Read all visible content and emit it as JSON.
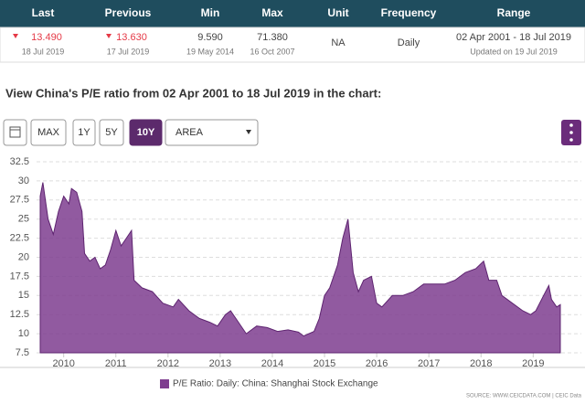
{
  "table": {
    "columns": [
      {
        "header": "Last",
        "value": "13.490",
        "date": "18 Jul 2019"
      },
      {
        "header": "Previous",
        "value": "13.630",
        "date": "17 Jul 2019"
      },
      {
        "header": "Min",
        "value": "9.590",
        "date": "19 May 2014"
      },
      {
        "header": "Max",
        "value": "71.380",
        "date": "16 Oct 2007"
      },
      {
        "header": "Unit",
        "value": "NA"
      },
      {
        "header": "Frequency",
        "value": "Daily"
      },
      {
        "header": "Range",
        "value": "02 Apr 2001 - 18 Jul 2019",
        "date": "Updated on 19 Jul 2019"
      }
    ]
  },
  "heading": "View China's P/E ratio from 02 Apr 2001 to 18 Jul 2019 in the chart:",
  "toolbar": {
    "buttons": [
      "MAX",
      "1Y",
      "5Y",
      "10Y"
    ],
    "active": 3,
    "dropdown": "AREA"
  },
  "chart_data": {
    "type": "area",
    "x": [
      2009.55,
      2009.6,
      2009.7,
      2009.8,
      2009.9,
      2010.0,
      2010.1,
      2010.15,
      2010.25,
      2010.35,
      2010.4,
      2010.5,
      2010.6,
      2010.7,
      2010.8,
      2010.9,
      2011.0,
      2011.1,
      2011.2,
      2011.3,
      2011.35,
      2011.5,
      2011.7,
      2011.9,
      2012.1,
      2012.2,
      2012.4,
      2012.6,
      2012.8,
      2012.95,
      2013.1,
      2013.2,
      2013.35,
      2013.5,
      2013.7,
      2013.9,
      2014.1,
      2014.3,
      2014.5,
      2014.6,
      2014.8,
      2014.9,
      2015.0,
      2015.1,
      2015.25,
      2015.35,
      2015.45,
      2015.55,
      2015.65,
      2015.75,
      2015.9,
      2016.0,
      2016.1,
      2016.3,
      2016.5,
      2016.7,
      2016.9,
      2017.1,
      2017.3,
      2017.5,
      2017.7,
      2017.9,
      2018.05,
      2018.15,
      2018.3,
      2018.4,
      2018.6,
      2018.8,
      2018.95,
      2019.05,
      2019.2,
      2019.3,
      2019.35,
      2019.45,
      2019.52
    ],
    "series": [
      {
        "name": "P/E Ratio: Daily: China: Shanghai Stock Exchange",
        "color": "#7e3d8f",
        "values": [
          28,
          29.8,
          25,
          23,
          26,
          28,
          27,
          29,
          28.5,
          26,
          20.5,
          19.5,
          20,
          18.5,
          19,
          21,
          23.5,
          21.5,
          22.5,
          23.5,
          17,
          16,
          15.5,
          14,
          13.5,
          14.5,
          13,
          12,
          11.5,
          11,
          12.5,
          13,
          11.5,
          10,
          11,
          10.8,
          10.3,
          10.5,
          10.2,
          9.7,
          10.3,
          12,
          15,
          16,
          19,
          22.5,
          25,
          18,
          15.5,
          17,
          17.5,
          14,
          13.5,
          15,
          15,
          15.5,
          16.5,
          16.5,
          16.5,
          17,
          18,
          18.5,
          19.5,
          17,
          17,
          15,
          14,
          13,
          12.5,
          13,
          15,
          16.3,
          14.5,
          13.5,
          13.8
        ]
      }
    ],
    "xlim": [
      2009.55,
      2019.52
    ],
    "xticks": [
      2010,
      2011,
      2012,
      2013,
      2014,
      2015,
      2016,
      2017,
      2018,
      2019
    ],
    "ylim": [
      7.5,
      32.5
    ],
    "yticks": [
      7.5,
      10,
      12.5,
      15,
      17.5,
      20,
      22.5,
      25,
      27.5,
      30,
      32.5
    ],
    "grid": true,
    "source": "SOURCE: WWW.CEICDATA.COM | CEIC Data"
  }
}
